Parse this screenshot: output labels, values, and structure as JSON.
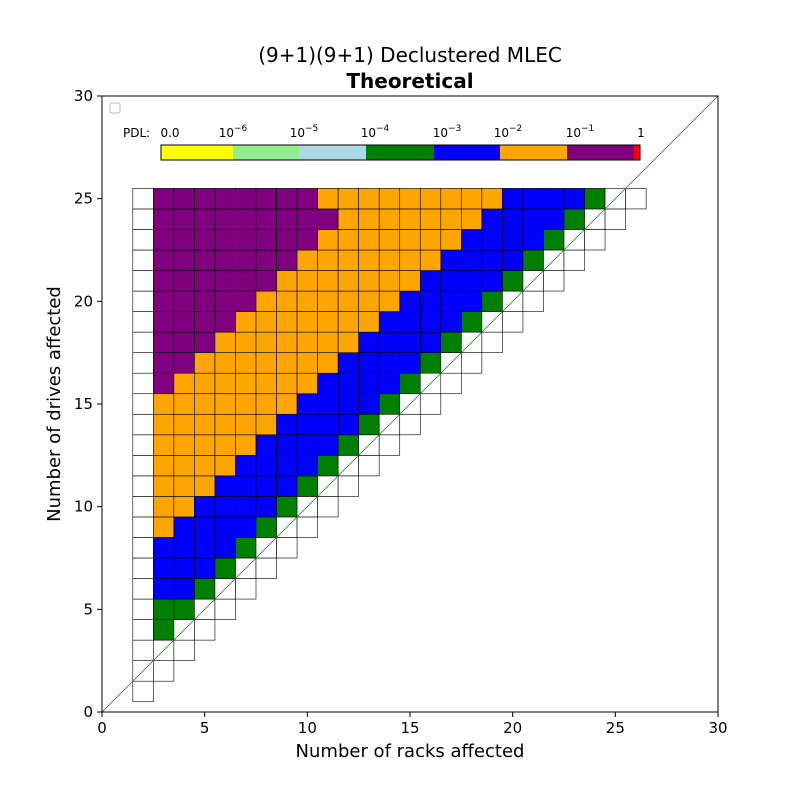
{
  "chart_data": {
    "type": "heatmap",
    "title": "(9+1)(9+1) Declustered MLEC",
    "subtitle": "Theoretical",
    "xlabel": "Number of racks affected",
    "ylabel": "Number of drives affected",
    "xlim": [
      0,
      30
    ],
    "ylim": [
      0,
      30
    ],
    "xticks": [
      "0",
      "5",
      "10",
      "15",
      "20",
      "25",
      "30"
    ],
    "yticks": [
      "0",
      "5",
      "10",
      "15",
      "20",
      "25",
      "30"
    ],
    "diagonal_reference_line": true,
    "colorbar": {
      "prefix": "PDL:",
      "placement": "top, inside axes",
      "labels": [
        {
          "base": "0.0",
          "exp": ""
        },
        {
          "base": "10",
          "exp": "−6"
        },
        {
          "base": "10",
          "exp": "−5"
        },
        {
          "base": "10",
          "exp": "−4"
        },
        {
          "base": "10",
          "exp": "−3"
        },
        {
          "base": "10",
          "exp": "−2"
        },
        {
          "base": "10",
          "exp": "−1"
        },
        {
          "base": "1",
          "exp": ""
        }
      ],
      "bins": [
        {
          "color": "#ffff00"
        },
        {
          "color": "#90ee90"
        },
        {
          "color": "#add8e6"
        },
        {
          "color": "#008000"
        },
        {
          "color": "#0000ff"
        },
        {
          "color": "#ffa500"
        },
        {
          "color": "#800080"
        },
        {
          "color": "#ff0000"
        }
      ]
    },
    "cell_colors": {
      "W": "#ffffff",
      "G": "#008000",
      "B": "#0000ff",
      "O": "#ffa500",
      "P": "#800080"
    },
    "rows": [
      {
        "drives": 1,
        "cells": "W"
      },
      {
        "drives": 2,
        "cells": "WW"
      },
      {
        "drives": 3,
        "cells": "WWW"
      },
      {
        "drives": 4,
        "cells": "WGWW"
      },
      {
        "drives": 5,
        "cells": "WGGWW"
      },
      {
        "drives": 6,
        "cells": "WBBGWW"
      },
      {
        "drives": 7,
        "cells": "WBBBGWW"
      },
      {
        "drives": 8,
        "cells": "WBBBBGWW"
      },
      {
        "drives": 9,
        "cells": "WOBBBBGWW"
      },
      {
        "drives": 10,
        "cells": "WOOBBBBGWW"
      },
      {
        "drives": 11,
        "cells": "WOOOBBBBGWW"
      },
      {
        "drives": 12,
        "cells": "WOOOOBBBBGWW"
      },
      {
        "drives": 13,
        "cells": "WOOOOOBBBBGWW"
      },
      {
        "drives": 14,
        "cells": "WOOOOOOBBBBGWW"
      },
      {
        "drives": 15,
        "cells": "WOOOOOOOBBBBGWW"
      },
      {
        "drives": 16,
        "cells": "WPOOOOOOOBBBBGWW"
      },
      {
        "drives": 17,
        "cells": "WPPOOOOOOOBBBBGWW"
      },
      {
        "drives": 18,
        "cells": "WPPPOOOOOOOBBBBGWW"
      },
      {
        "drives": 19,
        "cells": "WPPPPOOOOOOOBBBBGWW"
      },
      {
        "drives": 20,
        "cells": "WPPPPPOOOOOOOBBBBGWW"
      },
      {
        "drives": 21,
        "cells": "WPPPPPPOOOOOOOBBBBGWW"
      },
      {
        "drives": 22,
        "cells": "WPPPPPPPOOOOOOOBBBBGWW"
      },
      {
        "drives": 23,
        "cells": "WPPPPPPPPOOOOOOOBBBBGWW"
      },
      {
        "drives": 24,
        "cells": "WPPPPPPPPPOOOOOOOBBBBGWW"
      },
      {
        "drives": 25,
        "cells": "WPPPPPPPPOOOOOOOOOBBBBGWW"
      }
    ]
  }
}
